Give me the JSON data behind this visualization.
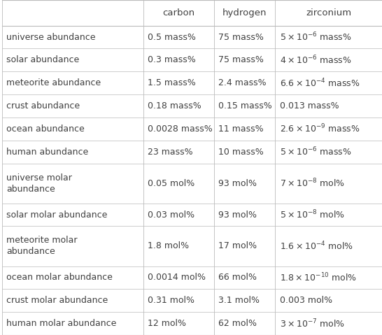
{
  "columns": [
    "carbon",
    "hydrogen",
    "zirconium"
  ],
  "rows": [
    "universe abundance",
    "solar abundance",
    "meteorite abundance",
    "crust abundance",
    "ocean abundance",
    "human abundance",
    "universe molar\nabundance",
    "solar molar abundance",
    "meteorite molar\nabundance",
    "ocean molar abundance",
    "crust molar abundance",
    "human molar abundance"
  ],
  "bg_color": "#ffffff",
  "line_color": "#bbbbbb",
  "text_color": "#404040",
  "font_size": 9.0,
  "header_font_size": 9.5
}
